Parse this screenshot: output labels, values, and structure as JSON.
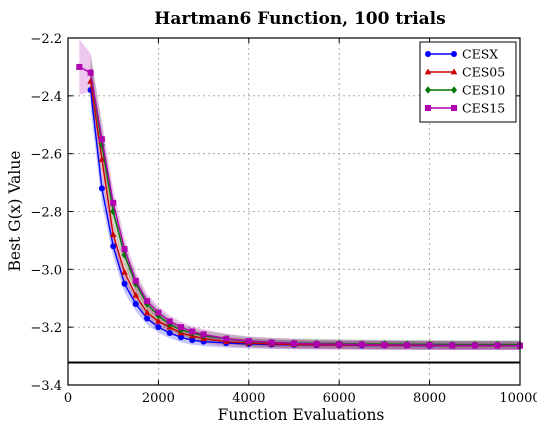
{
  "chart_data": {
    "type": "line",
    "title": "Hartman6 Function, 100 trials",
    "xlabel": "Function Evaluations",
    "ylabel": "Best G(x) Value",
    "xlim": [
      0,
      10000
    ],
    "ylim": [
      -3.4,
      -2.2
    ],
    "xticks": [
      0,
      2000,
      4000,
      6000,
      8000,
      10000
    ],
    "xtick_labels": [
      "0",
      "2000",
      "4000",
      "6000",
      "8000",
      "10000"
    ],
    "yticks": [
      -3.4,
      -3.2,
      -3.0,
      -2.8,
      -2.6,
      -2.4,
      -2.2
    ],
    "ytick_labels": [
      "−3.4",
      "−3.2",
      "−3.0",
      "−2.8",
      "−2.6",
      "−2.4",
      "−2.2"
    ],
    "grid": true,
    "legend_position": "top-right",
    "reference_line": {
      "y": -3.322,
      "color": "#000000"
    },
    "series": [
      {
        "name": "CESX",
        "color": "#0000ff",
        "marker": "circle",
        "x": [
          500,
          750,
          1000,
          1250,
          1500,
          1750,
          2000,
          2250,
          2500,
          2750,
          3000,
          3500,
          4000,
          4500,
          5000,
          5500,
          6000,
          6500,
          7000,
          7500,
          8000,
          8500,
          9000,
          9500,
          10000
        ],
        "y": [
          -2.38,
          -2.72,
          -2.92,
          -3.05,
          -3.12,
          -3.17,
          -3.2,
          -3.22,
          -3.235,
          -3.245,
          -3.25,
          -3.255,
          -3.258,
          -3.26,
          -3.261,
          -3.262,
          -3.262,
          -3.263,
          -3.263,
          -3.263,
          -3.264,
          -3.264,
          -3.264,
          -3.264,
          -3.264
        ]
      },
      {
        "name": "CES05",
        "color": "#cc0000",
        "marker": "triangle",
        "x": [
          500,
          750,
          1000,
          1250,
          1500,
          1750,
          2000,
          2250,
          2500,
          2750,
          3000,
          3500,
          4000,
          4500,
          5000,
          5500,
          6000,
          6500,
          7000,
          7500,
          8000,
          8500,
          9000,
          9500,
          10000
        ],
        "y": [
          -2.35,
          -2.62,
          -2.88,
          -3.01,
          -3.09,
          -3.15,
          -3.18,
          -3.2,
          -3.22,
          -3.23,
          -3.24,
          -3.25,
          -3.255,
          -3.258,
          -3.26,
          -3.261,
          -3.262,
          -3.262,
          -3.263,
          -3.263,
          -3.263,
          -3.264,
          -3.264,
          -3.264,
          -3.264
        ]
      },
      {
        "name": "CES10",
        "color": "#007700",
        "marker": "diamond",
        "x": [
          500,
          750,
          1000,
          1250,
          1500,
          1750,
          2000,
          2250,
          2500,
          2750,
          3000,
          3500,
          4000,
          4500,
          5000,
          5500,
          6000,
          6500,
          7000,
          7500,
          8000,
          8500,
          9000,
          9500,
          10000
        ],
        "y": [
          -2.32,
          -2.57,
          -2.8,
          -2.95,
          -3.05,
          -3.12,
          -3.16,
          -3.19,
          -3.21,
          -3.22,
          -3.23,
          -3.24,
          -3.25,
          -3.253,
          -3.255,
          -3.256,
          -3.257,
          -3.258,
          -3.258,
          -3.259,
          -3.259,
          -3.26,
          -3.26,
          -3.26,
          -3.26
        ]
      },
      {
        "name": "CES15",
        "color": "#b000b0",
        "marker": "square",
        "x": [
          250,
          500,
          750,
          1000,
          1250,
          1500,
          1750,
          2000,
          2250,
          2500,
          2750,
          3000,
          3500,
          4000,
          4500,
          5000,
          5500,
          6000,
          6500,
          7000,
          7500,
          8000,
          8500,
          9000,
          9500,
          10000
        ],
        "y": [
          -2.3,
          -2.32,
          -2.55,
          -2.77,
          -2.93,
          -3.04,
          -3.11,
          -3.15,
          -3.18,
          -3.2,
          -3.215,
          -3.225,
          -3.24,
          -3.248,
          -3.253,
          -3.256,
          -3.258,
          -3.259,
          -3.26,
          -3.261,
          -3.262,
          -3.262,
          -3.263,
          -3.263,
          -3.263,
          -3.264
        ]
      }
    ]
  }
}
